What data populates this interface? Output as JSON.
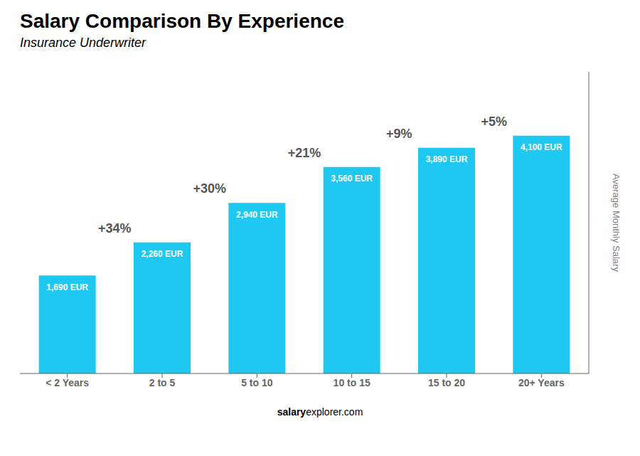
{
  "chart_data": {
    "type": "bar",
    "title": "Salary Comparison By Experience",
    "subtitle": "Insurance Underwriter",
    "y_label": "Average Monthly Salary",
    "categories": [
      "< 2 Years",
      "2 to 5",
      "5 to 10",
      "10 to 15",
      "15 to 20",
      "20+ Years"
    ],
    "values": [
      1690,
      2260,
      2940,
      3560,
      3890,
      4100
    ],
    "value_labels": [
      "1,690 EUR",
      "2,260 EUR",
      "2,940 EUR",
      "3,560 EUR",
      "3,890 EUR",
      "4,100 EUR"
    ],
    "data_labels": true,
    "color": "#1ec8f0",
    "ylim": [
      0,
      5200
    ],
    "yticks": [],
    "tick_labels": "x",
    "grid": false,
    "annotations": [
      "+34%",
      "+30%",
      "+21%",
      "+9%",
      "+5%"
    ],
    "watermark": [
      "salary",
      "explorer.com"
    ]
  }
}
